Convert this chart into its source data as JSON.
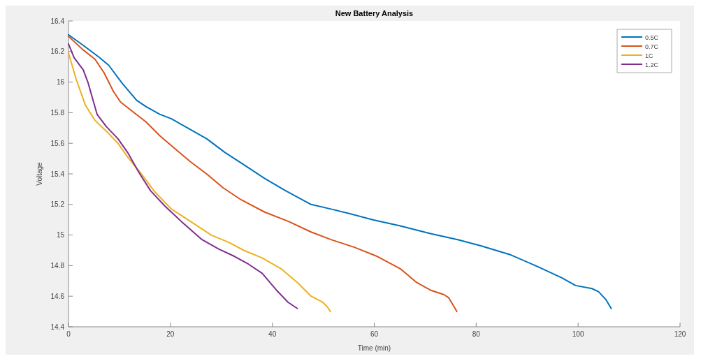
{
  "chart_data": {
    "type": "line",
    "title": "New Battery Analysis",
    "xlabel": "Time (min)",
    "ylabel": "Voltage",
    "xlim": [
      0,
      120
    ],
    "xticks": [
      0,
      20,
      40,
      60,
      80,
      100,
      120
    ],
    "ylim": [
      14.4,
      16.4
    ],
    "yticks": [
      14.4,
      14.6,
      14.8,
      15,
      15.2,
      15.4,
      15.6,
      15.8,
      16,
      16.2,
      16.4
    ],
    "grid": false,
    "legend": "top right",
    "marker": "none",
    "line_style": "solid",
    "series": [
      {
        "name": "0.5C",
        "color": "#0072bd",
        "x": [
          0,
          2.9,
          6.1,
          7.9,
          10.6,
          13.4,
          15.2,
          17.9,
          20.2,
          23.4,
          27.1,
          30.7,
          34.4,
          38.5,
          42.6,
          47.6,
          51.5,
          55.2,
          59.7,
          65.1,
          71,
          76.4,
          80.9,
          86.8,
          92.3,
          96.8,
          99.5,
          102.7,
          104,
          105.4,
          106.5
        ],
        "values": [
          16.31,
          16.24,
          16.16,
          16.11,
          15.99,
          15.88,
          15.84,
          15.79,
          15.76,
          15.7,
          15.63,
          15.54,
          15.46,
          15.37,
          15.29,
          15.2,
          15.17,
          15.14,
          15.1,
          15.06,
          15.01,
          14.97,
          14.93,
          14.87,
          14.79,
          14.72,
          14.67,
          14.65,
          14.63,
          14.58,
          14.52
        ]
      },
      {
        "name": "0.7C",
        "color": "#d95319",
        "x": [
          0,
          2.9,
          5.2,
          7,
          8.8,
          10.2,
          12.5,
          15.2,
          17.9,
          20.7,
          23.9,
          27.1,
          30.3,
          33.9,
          38.5,
          43.1,
          47.6,
          51.5,
          56.1,
          60.6,
          65.1,
          68.3,
          71,
          73.7,
          74.6,
          75.5,
          76.2
        ],
        "values": [
          16.3,
          16.21,
          16.15,
          16.06,
          15.94,
          15.87,
          15.81,
          15.74,
          15.65,
          15.57,
          15.48,
          15.4,
          15.31,
          15.23,
          15.15,
          15.09,
          15.02,
          14.97,
          14.92,
          14.86,
          14.78,
          14.69,
          14.64,
          14.61,
          14.59,
          14.54,
          14.5
        ]
      },
      {
        "name": "1C",
        "color": "#edb120",
        "x": [
          0,
          1.5,
          3.3,
          5.2,
          7.4,
          9.7,
          11.6,
          14.3,
          17,
          20.2,
          23.9,
          28,
          31.6,
          34.4,
          38,
          41.7,
          44.9,
          47.6,
          49.9,
          50.8,
          51.4
        ],
        "values": [
          16.19,
          16.02,
          15.85,
          15.75,
          15.68,
          15.6,
          15.51,
          15.4,
          15.28,
          15.17,
          15.09,
          15,
          14.95,
          14.9,
          14.85,
          14.78,
          14.69,
          14.6,
          14.56,
          14.53,
          14.5
        ]
      },
      {
        "name": "1.2C",
        "color": "#7e2f8e",
        "x": [
          0,
          1.1,
          2.9,
          3.8,
          5.6,
          7.4,
          9.7,
          11.6,
          13.8,
          16.1,
          18.9,
          22.1,
          26.2,
          29.4,
          32.6,
          35.3,
          38,
          40.8,
          43.1,
          44.9
        ],
        "values": [
          16.25,
          16.16,
          16.08,
          16,
          15.79,
          15.71,
          15.63,
          15.54,
          15.41,
          15.29,
          15.19,
          15.09,
          14.97,
          14.91,
          14.86,
          14.81,
          14.75,
          14.64,
          14.56,
          14.52
        ]
      }
    ]
  }
}
